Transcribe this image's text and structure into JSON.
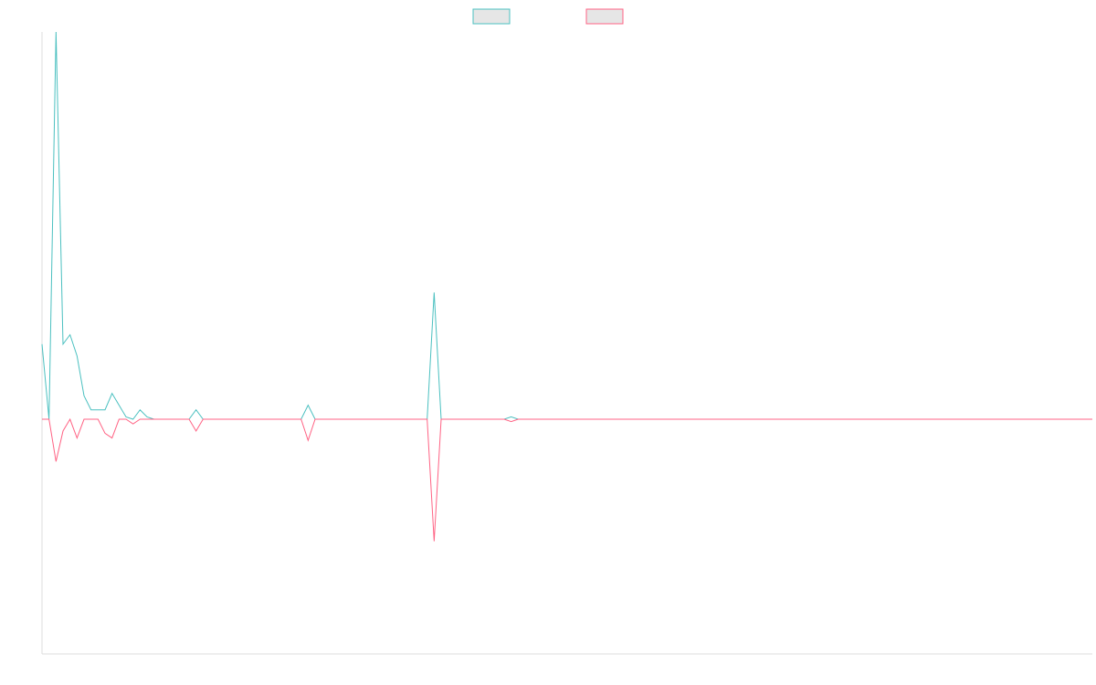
{
  "chart_data": {
    "type": "line",
    "title": "",
    "xlabel": "",
    "ylabel": "",
    "ylim": [
      -100,
      165
    ],
    "grid": false,
    "legend": {
      "placement": "top-center",
      "entries": [
        {
          "name": "",
          "color": "#4bc0c0",
          "fill": "#e6e6e6"
        },
        {
          "name": "",
          "color": "#ff6384",
          "fill": "#e6e6e6"
        }
      ]
    },
    "x": [
      0,
      2,
      4,
      6,
      8,
      10,
      12,
      14,
      16,
      18,
      20,
      22,
      24,
      26,
      28,
      30,
      32,
      34,
      36,
      38,
      40,
      42,
      44,
      46,
      48,
      50,
      52,
      54,
      56,
      58,
      60,
      62,
      64,
      66,
      68,
      70,
      72,
      74,
      76,
      78,
      80,
      82,
      84,
      86,
      88,
      90,
      92,
      94,
      96,
      98,
      100,
      102,
      104,
      106,
      108,
      110,
      112,
      114,
      116,
      118,
      120,
      122,
      124,
      126,
      128,
      130,
      132,
      134,
      136,
      138,
      140,
      142,
      144,
      146,
      148,
      150,
      152,
      154,
      156,
      158,
      160,
      162,
      164,
      166,
      168,
      170,
      172,
      174,
      176,
      178,
      180,
      182,
      184,
      186,
      188,
      190,
      192,
      194,
      196,
      198,
      200,
      202,
      204,
      206,
      208,
      210,
      212,
      214,
      216,
      218,
      220,
      222,
      224,
      226,
      228,
      230,
      232,
      234,
      236,
      238,
      240,
      242,
      244,
      246,
      248,
      250,
      252,
      254,
      256,
      258,
      260,
      262,
      264,
      266,
      268,
      270,
      272,
      274,
      276,
      278,
      280,
      282,
      284,
      286,
      288,
      290,
      292,
      294,
      296,
      298,
      300
    ],
    "series": [
      {
        "color": "#4bc0c0",
        "values": [
          32,
          0,
          165,
          32,
          36,
          27,
          10,
          4,
          4,
          4,
          11,
          6,
          1,
          0,
          4,
          1,
          0,
          0,
          0,
          0,
          0,
          0,
          4,
          0,
          0,
          0,
          0,
          0,
          0,
          0,
          0,
          0,
          0,
          0,
          0,
          0,
          0,
          0,
          6,
          0,
          0,
          0,
          0,
          0,
          0,
          0,
          0,
          0,
          0,
          0,
          0,
          0,
          0,
          0,
          0,
          0,
          54,
          0,
          0,
          0,
          0,
          0,
          0,
          0,
          0,
          0,
          0,
          1,
          0,
          0,
          0,
          0,
          0,
          0,
          0,
          0,
          0,
          0,
          0,
          0,
          0,
          0,
          0,
          0,
          0,
          0,
          0,
          0,
          0,
          0,
          0,
          0,
          0,
          0,
          0,
          0,
          0,
          0,
          0,
          0,
          0,
          0,
          0,
          0,
          0,
          0,
          0,
          0,
          0,
          0,
          0,
          0,
          0,
          0,
          0,
          0,
          0,
          0,
          0,
          0,
          0,
          0,
          0,
          0,
          0,
          0,
          0,
          0,
          0,
          0,
          0,
          0,
          0,
          0,
          0,
          0,
          0,
          0,
          0,
          0,
          0,
          0,
          0,
          0,
          0,
          0,
          0,
          0,
          0,
          0,
          0
        ]
      },
      {
        "color": "#ff6384",
        "values": [
          0,
          0,
          -18,
          -5,
          0,
          -8,
          0,
          0,
          0,
          -6,
          -8,
          0,
          0,
          -2,
          0,
          0,
          0,
          0,
          0,
          0,
          0,
          0,
          -5,
          0,
          0,
          0,
          0,
          0,
          0,
          0,
          0,
          0,
          0,
          0,
          0,
          0,
          0,
          0,
          -9,
          0,
          0,
          0,
          0,
          0,
          0,
          0,
          0,
          0,
          0,
          0,
          0,
          0,
          0,
          0,
          0,
          0,
          -52,
          0,
          0,
          0,
          0,
          0,
          0,
          0,
          0,
          0,
          0,
          -1,
          0,
          0,
          0,
          0,
          0,
          0,
          0,
          0,
          0,
          0,
          0,
          0,
          0,
          0,
          0,
          0,
          0,
          0,
          0,
          0,
          0,
          0,
          0,
          0,
          0,
          0,
          0,
          0,
          0,
          0,
          0,
          0,
          0,
          0,
          0,
          0,
          0,
          0,
          0,
          0,
          0,
          0,
          0,
          0,
          0,
          0,
          0,
          0,
          0,
          0,
          0,
          0,
          0,
          0,
          0,
          0,
          0,
          0,
          0,
          0,
          0,
          0,
          0,
          0,
          0,
          0,
          0,
          0,
          0,
          0,
          0,
          0,
          0,
          0,
          0,
          0,
          0,
          0,
          0,
          0,
          0,
          0,
          0
        ]
      }
    ]
  }
}
